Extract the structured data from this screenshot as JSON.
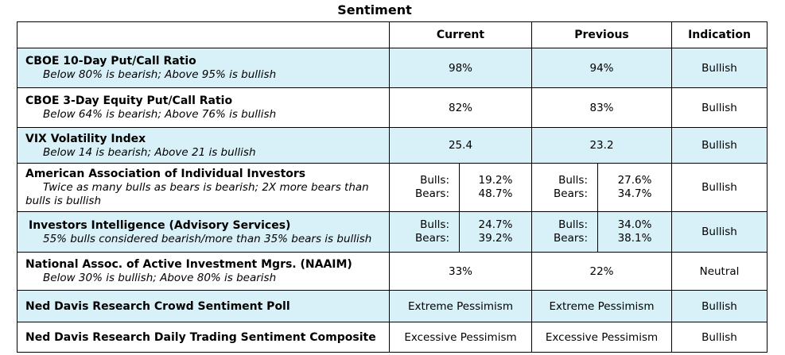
{
  "title": "Sentiment",
  "headers": {
    "current": "Current",
    "previous": "Previous",
    "indication": "Indication"
  },
  "rows": [
    {
      "name": "CBOE 10-Day Put/Call Ratio",
      "desc": "Below 80% is bearish; Above 95% is bullish",
      "current": "98%",
      "previous": "94%",
      "indication": "Bullish"
    },
    {
      "name": "CBOE 3-Day Equity Put/Call Ratio",
      "desc": "Below 64% is bearish; Above 76% is bullish",
      "current": "82%",
      "previous": "83%",
      "indication": "Bullish"
    },
    {
      "name": "VIX Volatility Index",
      "desc": "Below 14 is bearish; Above 21 is bullish",
      "current": "25.4",
      "previous": "23.2",
      "indication": "Bullish"
    },
    {
      "name": "American Association of Individual Investors",
      "desc_line1": "Twice as many bulls as bears is bearish; 2X more bears than",
      "desc_line2": "bulls is bullish",
      "bulls_label": "Bulls:",
      "bears_label": "Bears:",
      "current_bulls": "19.2%",
      "current_bears": "48.7%",
      "previous_bulls": "27.6%",
      "previous_bears": "34.7%",
      "indication": "Bullish"
    },
    {
      "name": "Investors Intelligence (Advisory Services)",
      "desc": "55% bulls considered bearish/more than 35% bears is bullish",
      "bulls_label": "Bulls:",
      "bears_label": "Bears:",
      "current_bulls": "24.7%",
      "current_bears": "39.2%",
      "previous_bulls": "34.0%",
      "previous_bears": "38.1%",
      "indication": "Bullish"
    },
    {
      "name": "National Assoc. of Active Investment Mgrs. (NAAIM)",
      "desc": "Below 30% is bullish; Above 80% is bearish",
      "current": "33%",
      "previous": "22%",
      "indication": "Neutral"
    },
    {
      "name": "Ned Davis Research Crowd Sentiment Poll",
      "current": "Extreme Pessimism",
      "previous": "Extreme Pessimism",
      "indication": "Bullish"
    },
    {
      "name": "Ned Davis Research Daily Trading Sentiment Composite",
      "current": "Excessive Pessimism",
      "previous": "Excessive Pessimism",
      "indication": "Bullish"
    }
  ],
  "colors": {
    "highlight": "#d8f0f7"
  }
}
